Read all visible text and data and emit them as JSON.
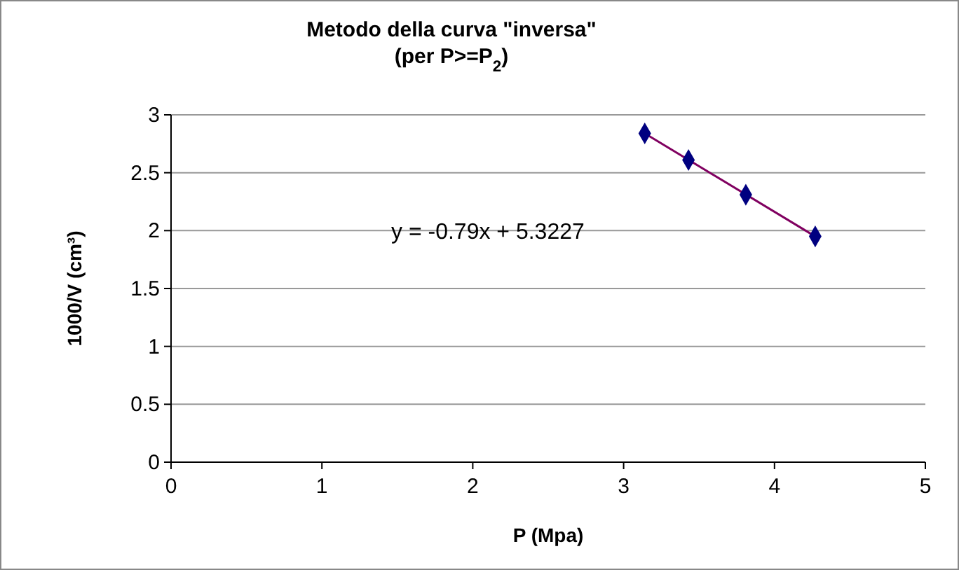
{
  "chart_data": {
    "type": "scatter",
    "title": "Metodo della curva \"inversa\"\n(per P>=P$_{2}$)",
    "xlabel": "P (Mpa)",
    "ylabel": "1000/V (cm³)",
    "xlim": [
      0,
      5
    ],
    "xticks": [
      0,
      1,
      2,
      3,
      4,
      5
    ],
    "ylim": [
      0,
      3
    ],
    "yticks": [
      0,
      0.5,
      1,
      1.5,
      2,
      2.5,
      3
    ],
    "grid": "y",
    "series": [
      {
        "color": "#000080",
        "marker": "diamond",
        "x": [
          3.14,
          3.43,
          3.81,
          4.27
        ],
        "values": [
          2.84,
          2.61,
          2.31,
          1.95
        ]
      },
      {
        "type": "line",
        "color": "#800060",
        "x": [
          3.14,
          4.27
        ],
        "values": [
          2.84,
          1.95
        ]
      }
    ],
    "annotations": [
      "y = -0.79x + 5.3227"
    ]
  }
}
